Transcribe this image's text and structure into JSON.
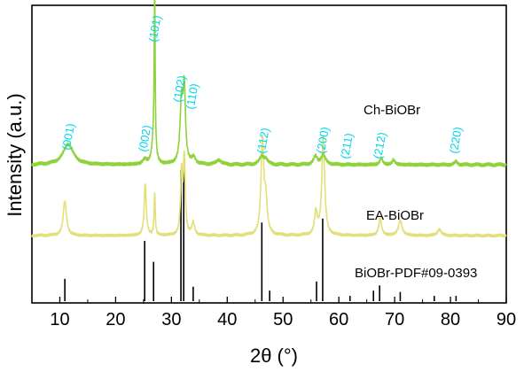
{
  "chart_data": {
    "type": "line",
    "xlabel": "2θ (°)",
    "ylabel": "Intensity (a.u.)",
    "xlim": [
      5,
      90
    ],
    "xticks": [
      10,
      20,
      30,
      40,
      50,
      60,
      70,
      80,
      90
    ],
    "grid": false,
    "colors": {
      "ch": "#8fd33c",
      "ea": "#e3df7a",
      "ref": "#000000",
      "peak_label": "#00d6ee",
      "axis": "#000000"
    },
    "series": [
      {
        "name": "Ch-BiOBr",
        "baseline": 0.06,
        "peaks": [
          [
            11.5,
            0.13,
            1.1
          ],
          [
            25.2,
            0.03,
            0.4
          ],
          [
            26.8,
            0.15,
            0.35
          ],
          [
            27.0,
            1.0,
            0.1
          ],
          [
            31.8,
            0.38,
            0.3
          ],
          [
            32.3,
            0.45,
            0.25
          ],
          [
            34.0,
            0.04,
            0.4
          ],
          [
            38.5,
            0.03,
            0.5
          ],
          [
            46.2,
            0.05,
            0.5
          ],
          [
            46.9,
            0.03,
            0.4
          ],
          [
            55.8,
            0.05,
            0.4
          ],
          [
            57.2,
            0.06,
            0.5
          ],
          [
            67.6,
            0.04,
            0.3
          ],
          [
            69.8,
            0.03,
            0.3
          ],
          [
            81.0,
            0.02,
            0.3
          ]
        ]
      },
      {
        "name": "EA-BiOBr",
        "baseline": 0.06,
        "peaks": [
          [
            10.9,
            0.28,
            0.35
          ],
          [
            25.3,
            0.42,
            0.22
          ],
          [
            27.0,
            0.34,
            0.12
          ],
          [
            31.8,
            0.5,
            0.2
          ],
          [
            32.3,
            0.62,
            0.2
          ],
          [
            33.9,
            0.1,
            0.3
          ],
          [
            46.3,
            0.76,
            0.3
          ],
          [
            46.9,
            0.25,
            0.3
          ],
          [
            55.9,
            0.18,
            0.3
          ],
          [
            57.2,
            0.8,
            0.3
          ],
          [
            67.4,
            0.14,
            0.3
          ],
          [
            71.0,
            0.12,
            0.4
          ],
          [
            78.0,
            0.05,
            0.4
          ]
        ]
      },
      {
        "name": "BiOBr-PDF#09-0393",
        "sticks": [
          [
            10.9,
            0.17
          ],
          [
            25.2,
            0.46
          ],
          [
            26.8,
            0.3
          ],
          [
            31.7,
            1.0
          ],
          [
            32.2,
            1.0
          ],
          [
            33.9,
            0.11
          ],
          [
            46.2,
            0.6
          ],
          [
            47.6,
            0.08
          ],
          [
            56.0,
            0.15
          ],
          [
            57.1,
            0.63
          ],
          [
            62.0,
            0.04
          ],
          [
            66.2,
            0.08
          ],
          [
            67.3,
            0.12
          ],
          [
            71.0,
            0.07
          ],
          [
            77.1,
            0.04
          ],
          [
            81.0,
            0.04
          ]
        ]
      }
    ],
    "peak_labels": [
      {
        "text": "(001)",
        "x": 11.8
      },
      {
        "text": "(002)",
        "x": 25.5
      },
      {
        "text": "(101)",
        "x": 27.3
      },
      {
        "text": "(102)",
        "x": 31.7
      },
      {
        "text": "(110)",
        "x": 34.0
      },
      {
        "text": "(112)",
        "x": 46.7
      },
      {
        "text": "(200)",
        "x": 57.4
      },
      {
        "text": "(211)",
        "x": 61.7
      },
      {
        "text": "(212)",
        "x": 67.6
      },
      {
        "text": "(220)",
        "x": 81.2
      }
    ]
  }
}
